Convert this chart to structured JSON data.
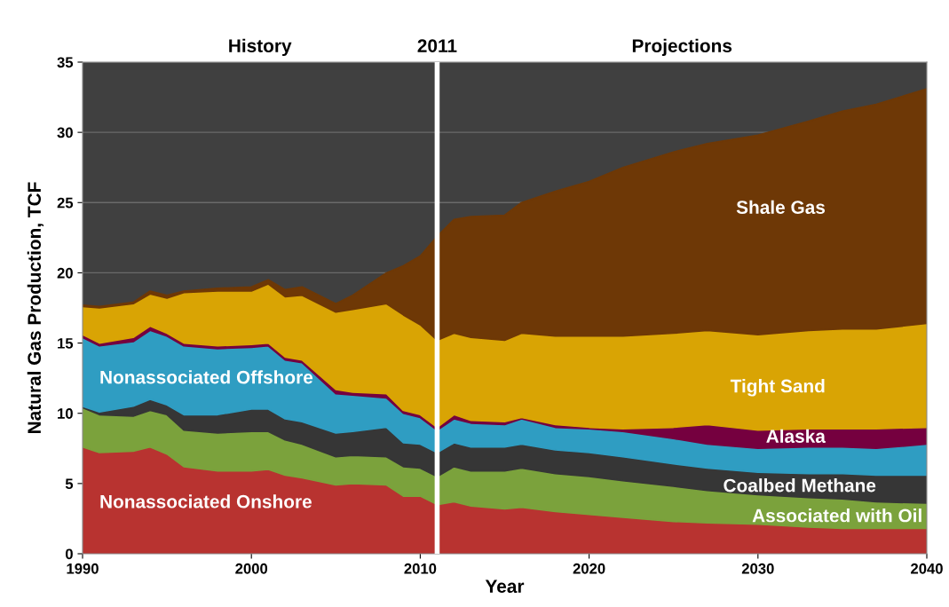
{
  "chart_data": {
    "type": "area",
    "stacked": true,
    "xlabel": "Year",
    "ylabel": "Natural Gas Production, TCF",
    "annotations": [
      "History",
      "Projections"
    ],
    "x": [
      1990,
      1991,
      1993,
      1994,
      1995,
      1996,
      1998,
      2000,
      2001,
      2002,
      2003,
      2005,
      2006,
      2008,
      2009,
      2010,
      2011,
      2012,
      2013,
      2015,
      2016,
      2018,
      2020,
      2022,
      2025,
      2027,
      2030,
      2033,
      2035,
      2037,
      2040
    ],
    "series": [
      {
        "name": "Nonassociated Onshore",
        "color": "#b83330",
        "values": [
          7.6,
          7.2,
          7.3,
          7.6,
          7.1,
          6.2,
          5.9,
          5.9,
          6.0,
          5.6,
          5.4,
          4.9,
          5.0,
          4.9,
          4.1,
          4.1,
          3.5,
          3.7,
          3.4,
          3.2,
          3.3,
          3.0,
          2.8,
          2.6,
          2.3,
          2.2,
          2.1,
          1.9,
          1.8,
          1.8,
          1.8
        ]
      },
      {
        "name": "Associated with Oil",
        "color": "#7ba23c",
        "values": [
          2.8,
          2.7,
          2.5,
          2.6,
          2.8,
          2.6,
          2.7,
          2.8,
          2.7,
          2.5,
          2.4,
          2.0,
          2.0,
          2.0,
          2.1,
          2.0,
          2.0,
          2.5,
          2.5,
          2.7,
          2.8,
          2.7,
          2.7,
          2.6,
          2.5,
          2.3,
          2.1,
          2.1,
          2.1,
          1.9,
          1.8
        ]
      },
      {
        "name": "Coalbed Methane",
        "color": "#363636",
        "values": [
          0.1,
          0.2,
          0.7,
          0.8,
          0.7,
          1.1,
          1.3,
          1.6,
          1.6,
          1.5,
          1.6,
          1.7,
          1.7,
          2.1,
          1.7,
          1.7,
          1.7,
          1.7,
          1.7,
          1.7,
          1.7,
          1.7,
          1.7,
          1.7,
          1.6,
          1.6,
          1.6,
          1.7,
          1.8,
          1.9,
          2.0
        ]
      },
      {
        "name": "Nonassociated Offshore",
        "color": "#2f9dc2",
        "values": [
          4.9,
          4.7,
          4.6,
          4.9,
          4.9,
          4.9,
          4.7,
          4.4,
          4.5,
          4.2,
          4.2,
          2.8,
          2.6,
          2.1,
          2.1,
          1.9,
          1.6,
          1.7,
          1.7,
          1.6,
          1.8,
          1.6,
          1.7,
          1.8,
          1.8,
          1.7,
          1.7,
          1.9,
          1.9,
          1.9,
          2.2
        ]
      },
      {
        "name": "Alaska",
        "color": "#75003f",
        "values": [
          0.2,
          0.2,
          0.3,
          0.3,
          0.2,
          0.2,
          0.2,
          0.2,
          0.2,
          0.2,
          0.2,
          0.3,
          0.2,
          0.3,
          0.2,
          0.2,
          0.2,
          0.3,
          0.2,
          0.2,
          0.1,
          0.2,
          0.1,
          0.2,
          0.8,
          1.4,
          1.3,
          1.3,
          1.3,
          1.4,
          1.2
        ]
      },
      {
        "name": "Tight Sand",
        "color": "#d9a404",
        "values": [
          2.0,
          2.5,
          2.4,
          2.3,
          2.5,
          3.6,
          3.9,
          3.8,
          4.2,
          4.3,
          4.6,
          5.5,
          5.9,
          6.4,
          6.8,
          6.4,
          6.2,
          5.8,
          5.9,
          5.8,
          6.0,
          6.3,
          6.5,
          6.6,
          6.7,
          6.7,
          6.8,
          7.0,
          7.1,
          7.1,
          7.4
        ]
      },
      {
        "name": "Shale Gas",
        "color": "#6e3806",
        "values": [
          0.1,
          0.1,
          0.1,
          0.2,
          0.2,
          0.1,
          0.2,
          0.3,
          0.3,
          0.5,
          0.6,
          0.6,
          1.0,
          2.2,
          3.5,
          4.9,
          7.4,
          8.1,
          8.6,
          8.9,
          9.3,
          10.3,
          11.0,
          12.0,
          12.9,
          13.3,
          14.2,
          14.9,
          15.5,
          16.0,
          16.7
        ]
      }
    ],
    "ref_lines": [
      {
        "axis": "x",
        "value": 2011,
        "label": "2011",
        "color": "#ffffff"
      }
    ],
    "xlim": [
      1990,
      2040
    ],
    "xticks": [
      1990,
      2000,
      2010,
      2020,
      2030,
      2040
    ],
    "ylim": [
      0,
      35
    ],
    "yticks": [
      0,
      5,
      10,
      15,
      20,
      25,
      30,
      35
    ],
    "grid": "y",
    "legend": false
  }
}
